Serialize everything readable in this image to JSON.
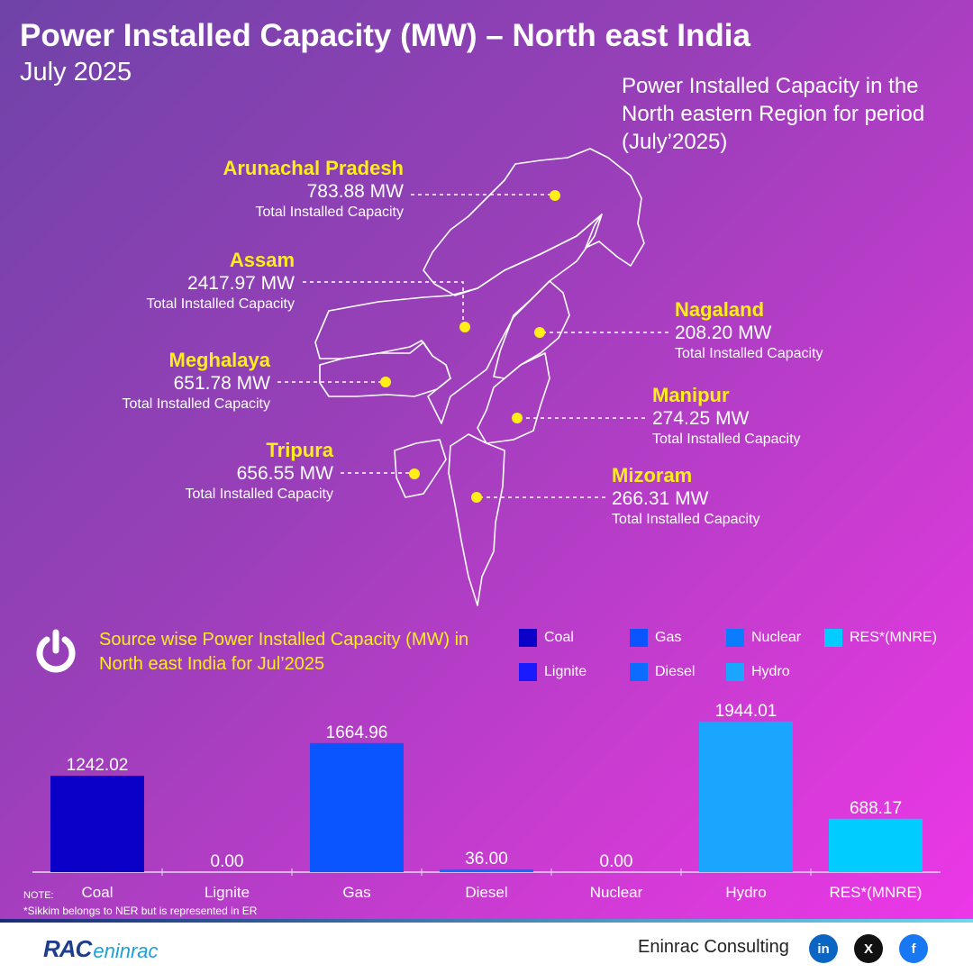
{
  "header": {
    "title": "Power Installed Capacity (MW) – North east India",
    "subtitle": "July 2025",
    "side_note": "Power Installed Capacity in the North eastern Region for period (July’2025)"
  },
  "states": [
    {
      "name": "Arunachal Pradesh",
      "value": "783.88 MW",
      "caption": "Total Installed Capacity"
    },
    {
      "name": "Assam",
      "value": "2417.97 MW",
      "caption": "Total Installed Capacity"
    },
    {
      "name": "Meghalaya",
      "value": "651.78 MW",
      "caption": "Total Installed Capacity"
    },
    {
      "name": "Tripura",
      "value": "656.55 MW",
      "caption": "Total Installed Capacity"
    },
    {
      "name": "Nagaland",
      "value": "208.20 MW",
      "caption": "Total Installed Capacity"
    },
    {
      "name": "Manipur",
      "value": "274.25 MW",
      "caption": "Total Installed Capacity"
    },
    {
      "name": "Mizoram",
      "value": "266.31 MW",
      "caption": "Total Installed Capacity"
    }
  ],
  "source_section": {
    "title": "Source wise Power Installed Capacity (MW) in North east India for Jul’2025",
    "icon": "power-icon"
  },
  "chart_data": {
    "type": "bar",
    "title": "Source wise Power Installed Capacity (MW) in North east India for Jul’2025",
    "categories": [
      "Coal",
      "Lignite",
      "Gas",
      "Diesel",
      "Nuclear",
      "Hydro",
      "RES*(MNRE)"
    ],
    "values": [
      1242.02,
      0.0,
      1664.96,
      36.0,
      0.0,
      1944.01,
      688.17
    ],
    "value_labels": [
      "1242.02",
      "0.00",
      "1664.96",
      "36.00",
      "0.00",
      "1944.01",
      "688.17"
    ],
    "colors": [
      "#0a00c8",
      "#1a1aff",
      "#0a55ff",
      "#0b6cff",
      "#0a7cff",
      "#1aa6ff",
      "#00ccff"
    ],
    "legend": [
      {
        "label": "Coal",
        "color": "#0a00c8"
      },
      {
        "label": "Gas",
        "color": "#0a55ff"
      },
      {
        "label": "Nuclear",
        "color": "#0a7cff"
      },
      {
        "label": "RES*(MNRE)",
        "color": "#00ccff"
      },
      {
        "label": "Lignite",
        "color": "#1a1aff"
      },
      {
        "label": "Diesel",
        "color": "#0b6cff"
      },
      {
        "label": "Hydro",
        "color": "#1aa6ff"
      }
    ],
    "ylim": [
      0,
      2000
    ],
    "grid": false,
    "legend_position": "top-right"
  },
  "notes": {
    "title": "NOTE:",
    "text": "*Sikkim belongs to NER but is represented in ER"
  },
  "footer": {
    "brand_rac": "RAC",
    "brand_eni": "eninrac",
    "company": "Eninrac Consulting",
    "social": [
      {
        "icon": "linkedin-icon",
        "glyph": "in",
        "color": "#0a66c2"
      },
      {
        "icon": "x-icon",
        "glyph": "X",
        "color": "#111111"
      },
      {
        "icon": "facebook-icon",
        "glyph": "f",
        "color": "#1877f2"
      }
    ]
  }
}
